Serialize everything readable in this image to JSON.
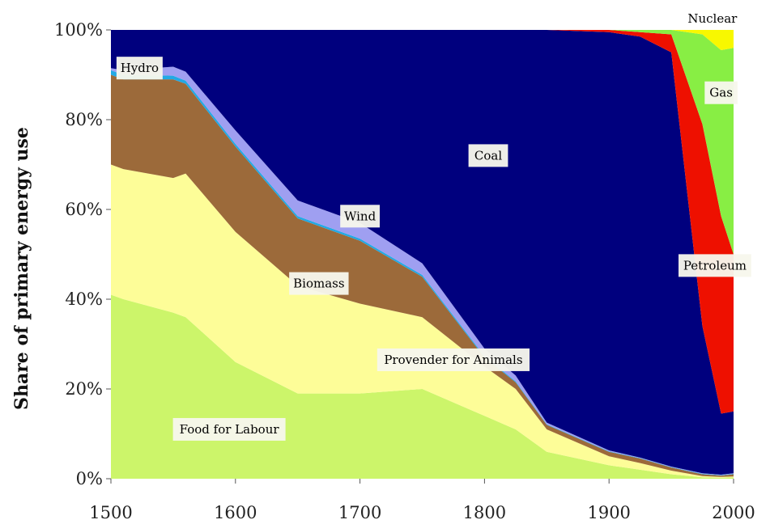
{
  "chart_data": {
    "type": "area",
    "stacked": true,
    "percent": true,
    "ylabel": "Share of primary energy use",
    "xlabel": "",
    "xlim": [
      1500,
      2000
    ],
    "ylim": [
      0,
      100
    ],
    "x_ticks": [
      "1500",
      "1600",
      "1700",
      "1800",
      "1900",
      "2000"
    ],
    "y_ticks": [
      "0%",
      "20%",
      "40%",
      "60%",
      "80%",
      "100%"
    ],
    "x": [
      1500,
      1510,
      1550,
      1560,
      1600,
      1650,
      1700,
      1750,
      1800,
      1825,
      1850,
      1900,
      1925,
      1950,
      1975,
      1990,
      2000
    ],
    "series": [
      {
        "name": "Food for Labour",
        "color": "#ccf56a",
        "values": [
          41,
          40,
          37,
          36,
          26,
          19,
          19,
          20,
          14,
          11,
          6,
          3,
          2,
          1,
          0.3,
          0.2,
          0.3
        ]
      },
      {
        "name": "Provender for Animals",
        "color": "#fdfd98",
        "values": [
          29,
          29,
          30,
          32,
          29,
          24,
          20,
          16,
          11,
          9,
          5,
          2,
          1.5,
          0.8,
          0.3,
          0.2,
          0.2
        ]
      },
      {
        "name": "Biomass",
        "color": "#9c6a3a",
        "values": [
          20,
          20,
          22,
          20,
          19,
          15,
          14,
          9,
          2,
          1.5,
          1,
          1,
          1,
          0.7,
          0.4,
          0.3,
          0.5
        ]
      },
      {
        "name": "Hydro",
        "color": "#22a9e4",
        "values": [
          1,
          1,
          0.8,
          0.7,
          0.6,
          0.5,
          0.5,
          0.4,
          0.3,
          0.2,
          0.1,
          0.1,
          0.1,
          0.1,
          0.1,
          0.1,
          0.1
        ]
      },
      {
        "name": "Wind",
        "color": "#9f9ff1",
        "values": [
          0.5,
          1,
          2,
          2,
          3,
          3.5,
          3.5,
          2.6,
          1.7,
          1.3,
          0.4,
          0.2,
          0.1,
          0.1,
          0.1,
          0.1,
          0.1
        ]
      },
      {
        "name": "Coal",
        "color": "#00007e",
        "values": [
          8.5,
          9,
          8.2,
          9.3,
          22.4,
          38,
          43,
          52,
          71,
          77,
          87.5,
          93.2,
          93.8,
          92.3,
          32.8,
          13.6,
          13.8
        ]
      },
      {
        "name": "Petroleum",
        "color": "#ee1000",
        "values": [
          0,
          0,
          0,
          0,
          0,
          0,
          0,
          0,
          0,
          0,
          0,
          0.5,
          1,
          4,
          45,
          44,
          35
        ]
      },
      {
        "name": "Gas",
        "color": "#88ee44",
        "values": [
          0,
          0,
          0,
          0,
          0,
          0,
          0,
          0,
          0,
          0,
          0,
          0,
          0.5,
          1,
          20,
          37,
          46
        ]
      },
      {
        "name": "Nuclear",
        "color": "#f8f800",
        "values": [
          0,
          0,
          0,
          0,
          0,
          0,
          0,
          0,
          0,
          0,
          0,
          0,
          0,
          0,
          1,
          4.5,
          4
        ]
      }
    ],
    "labels": [
      {
        "text": "Hydro",
        "x": 1523,
        "y": 91.5,
        "box": true
      },
      {
        "text": "Coal",
        "x": 1803,
        "y": 72,
        "box": true
      },
      {
        "text": "Wind",
        "x": 1700,
        "y": 58.5,
        "box": true
      },
      {
        "text": "Biomass",
        "x": 1667,
        "y": 43.5,
        "box": true
      },
      {
        "text": "Provender for Animals",
        "x": 1775,
        "y": 26.5,
        "box": true
      },
      {
        "text": "Food for Labour",
        "x": 1595,
        "y": 11,
        "box": true
      },
      {
        "text": "Nuclear",
        "x": 1983,
        "y": 102.5,
        "box": false
      },
      {
        "text": "Gas",
        "x": 1990,
        "y": 86,
        "box": true
      },
      {
        "text": "Petroleum",
        "x": 1985,
        "y": 47.5,
        "box": true
      }
    ]
  }
}
